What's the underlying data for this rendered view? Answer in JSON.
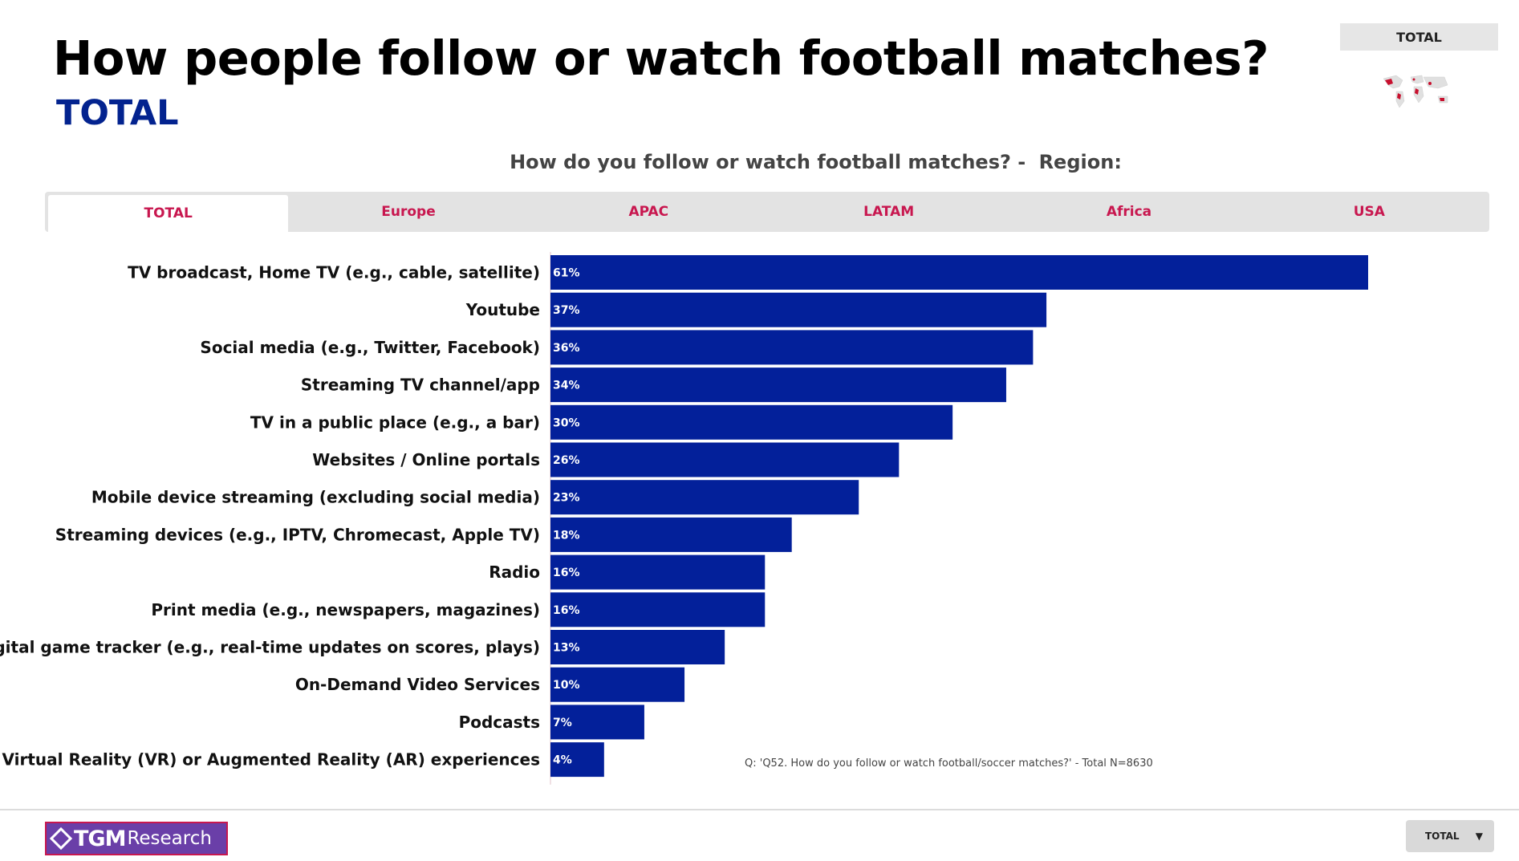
{
  "header": {
    "title": "How people follow or watch football matches?",
    "subtitle": "TOTAL",
    "region_badge": "TOTAL"
  },
  "question": {
    "text": "How do you follow or watch football matches? -",
    "region_label": "Region:"
  },
  "tabs": [
    {
      "label": "TOTAL",
      "active": true
    },
    {
      "label": "Europe",
      "active": false
    },
    {
      "label": "APAC",
      "active": false
    },
    {
      "label": "LATAM",
      "active": false
    },
    {
      "label": "Africa",
      "active": false
    },
    {
      "label": "USA",
      "active": false
    }
  ],
  "chart_data": {
    "type": "bar",
    "orientation": "horizontal",
    "categories": [
      "TV broadcast, Home TV (e.g., cable, satellite)",
      "Youtube",
      "Social media (e.g., Twitter, Facebook)",
      "Streaming TV channel/app",
      "TV in a public place (e.g., a bar)",
      "Websites / Online portals",
      "Mobile device streaming (excluding social media)",
      "Streaming devices (e.g., IPTV, Chromecast, Apple TV)",
      "Radio",
      "Print media (e.g., newspapers, magazines)",
      "Digital game tracker (e.g., real-time updates on scores, plays)",
      "On-Demand Video Services",
      "Podcasts",
      "Virtual Reality (VR) or Augmented Reality (AR) experiences"
    ],
    "values": [
      61,
      37,
      36,
      34,
      30,
      26,
      23,
      18,
      16,
      16,
      13,
      10,
      7,
      4
    ],
    "value_suffix": "%",
    "xlim": [
      0,
      66
    ],
    "bar_color": "#03209a",
    "grid": false
  },
  "footnote": "Q: 'Q52. How do you follow or watch football/soccer matches?' - Total N=8630",
  "footer": {
    "logo_tgm": "TGM",
    "logo_research": "Research",
    "dropdown_value": "TOTAL"
  },
  "colors": {
    "accent_red": "#c8174f",
    "brand_blue": "#03238f"
  }
}
